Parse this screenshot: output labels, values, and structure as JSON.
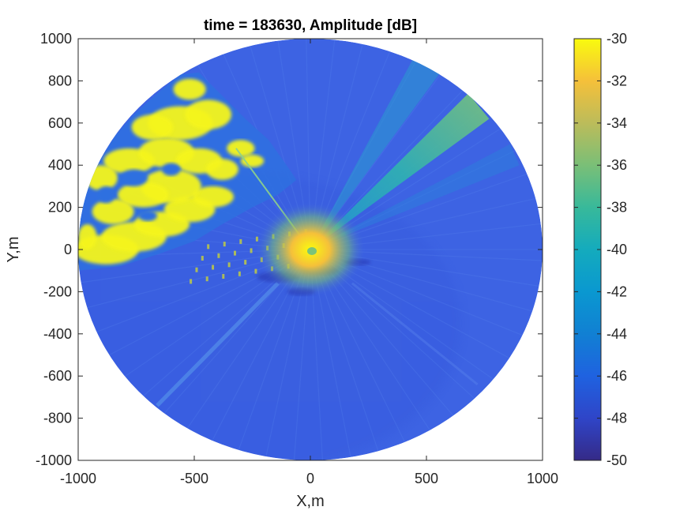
{
  "chart_data": {
    "type": "heatmap",
    "title": "time = 183630, Amplitude [dB]",
    "xlabel": "X,m",
    "ylabel": "Y,m",
    "xlim": [
      -1000,
      1000
    ],
    "ylim": [
      -1000,
      1000
    ],
    "x_ticks": [
      -1000,
      -500,
      0,
      500,
      1000
    ],
    "y_ticks": [
      -1000,
      -800,
      -600,
      -400,
      -200,
      0,
      200,
      400,
      600,
      800,
      1000
    ],
    "x_tick_labels": [
      "-1000",
      "-500",
      "0",
      "500",
      "1000"
    ],
    "y_tick_labels": [
      "-1000",
      "-800",
      "-600",
      "-400",
      "-200",
      "0",
      "200",
      "400",
      "600",
      "800",
      "1000"
    ],
    "colorbar": {
      "range": [
        -50,
        -30
      ],
      "ticks": [
        -50,
        -48,
        -46,
        -44,
        -42,
        -40,
        -38,
        -36,
        -34,
        -32,
        -30
      ],
      "tick_labels": [
        "-50",
        "-48",
        "-46",
        "-44",
        "-42",
        "-40",
        "-38",
        "-36",
        "-34",
        "-32",
        "-30"
      ],
      "colormap": "parula"
    },
    "data_extent": {
      "shape": "circle",
      "center": [
        0,
        0
      ],
      "radius": 1000
    },
    "background_level_db": -46,
    "features": [
      {
        "region": "upper-left sector",
        "level_db": -30
      },
      {
        "region": "center",
        "level_db": -32
      },
      {
        "region": "upper-right beam",
        "level_db": -36
      }
    ],
    "grid": false,
    "box": true
  },
  "colors": {
    "background": "#ffffff",
    "axes_text": "#262626",
    "disk_base": "#3d63e3",
    "strong": "#f5f51f",
    "medium": "#38c9a3",
    "weak": "#2f45c8"
  }
}
